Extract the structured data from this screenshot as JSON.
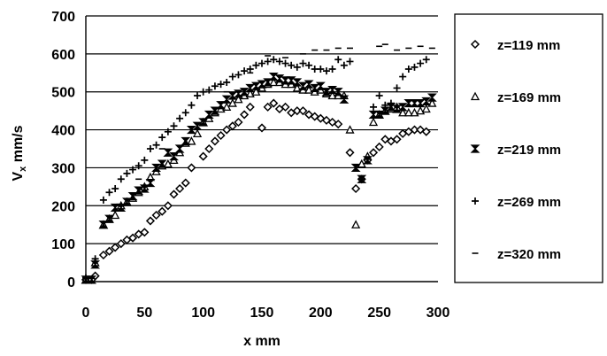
{
  "chart_data": {
    "type": "scatter",
    "title": "",
    "xlabel": "x mm",
    "ylabel_main": "V",
    "ylabel_sub": "x",
    "ylabel_rest": " mm/s",
    "xlim": [
      0,
      300
    ],
    "ylim": [
      0,
      700
    ],
    "xticks": [
      "0",
      "50",
      "100",
      "150",
      "200",
      "250",
      "300"
    ],
    "yticks": [
      "0",
      "100",
      "200",
      "300",
      "400",
      "500",
      "600",
      "700"
    ],
    "grid": "horizontal",
    "legend_position": "right",
    "series": [
      {
        "name": "z=119 mm",
        "marker": "diamond",
        "x": [
          0,
          5,
          8,
          15,
          20,
          25,
          30,
          35,
          40,
          45,
          50,
          55,
          60,
          65,
          70,
          75,
          80,
          85,
          90,
          100,
          105,
          110,
          115,
          120,
          125,
          130,
          135,
          140,
          150,
          155,
          160,
          165,
          170,
          175,
          180,
          185,
          190,
          195,
          200,
          205,
          210,
          215,
          225,
          230,
          235,
          240,
          245,
          250,
          255,
          260,
          265,
          270,
          275,
          280,
          285,
          290
        ],
        "y": [
          5,
          5,
          15,
          70,
          80,
          90,
          100,
          110,
          115,
          125,
          130,
          160,
          175,
          185,
          200,
          230,
          245,
          260,
          300,
          330,
          350,
          370,
          385,
          400,
          410,
          420,
          440,
          460,
          405,
          460,
          470,
          455,
          460,
          445,
          450,
          450,
          440,
          435,
          430,
          425,
          420,
          415,
          340,
          245,
          270,
          320,
          340,
          355,
          375,
          370,
          375,
          390,
          395,
          400,
          400,
          395
        ]
      },
      {
        "name": "z=169 mm",
        "marker": "triangle",
        "x": [
          0,
          8,
          15,
          20,
          25,
          30,
          35,
          40,
          45,
          50,
          55,
          60,
          65,
          70,
          75,
          80,
          85,
          90,
          95,
          100,
          105,
          110,
          115,
          120,
          125,
          130,
          135,
          140,
          145,
          150,
          155,
          160,
          165,
          170,
          175,
          180,
          185,
          190,
          195,
          200,
          205,
          210,
          215,
          220,
          225,
          230,
          235,
          240,
          245,
          250,
          255,
          260,
          265,
          270,
          275,
          280,
          285,
          290,
          295
        ],
        "y": [
          5,
          50,
          150,
          165,
          175,
          200,
          210,
          220,
          235,
          250,
          275,
          290,
          305,
          310,
          320,
          340,
          365,
          370,
          390,
          420,
          430,
          445,
          455,
          460,
          470,
          480,
          490,
          495,
          500,
          510,
          520,
          525,
          525,
          520,
          520,
          510,
          505,
          505,
          500,
          505,
          495,
          490,
          490,
          490,
          400,
          150,
          310,
          330,
          420,
          440,
          450,
          455,
          460,
          445,
          445,
          445,
          450,
          455,
          470
        ]
      },
      {
        "name": "z=219 mm",
        "marker": "hourglass",
        "x": [
          0,
          5,
          8,
          15,
          20,
          25,
          30,
          35,
          40,
          45,
          50,
          55,
          60,
          65,
          70,
          75,
          80,
          85,
          90,
          95,
          100,
          105,
          110,
          115,
          120,
          125,
          130,
          135,
          140,
          145,
          150,
          155,
          160,
          165,
          170,
          175,
          180,
          185,
          190,
          195,
          200,
          205,
          210,
          215,
          220,
          230,
          235,
          240,
          245,
          250,
          255,
          260,
          265,
          270,
          275,
          280,
          285,
          290,
          295
        ],
        "y": [
          5,
          5,
          45,
          150,
          165,
          195,
          195,
          210,
          225,
          240,
          245,
          260,
          300,
          310,
          340,
          330,
          350,
          370,
          400,
          410,
          420,
          440,
          450,
          465,
          480,
          490,
          495,
          500,
          510,
          515,
          520,
          525,
          540,
          535,
          530,
          530,
          525,
          515,
          520,
          510,
          515,
          500,
          505,
          500,
          480,
          300,
          270,
          320,
          440,
          440,
          450,
          460,
          455,
          460,
          470,
          470,
          470,
          475,
          485
        ]
      },
      {
        "name": "z=269 mm",
        "marker": "plus",
        "x": [
          0,
          8,
          15,
          20,
          25,
          30,
          35,
          40,
          45,
          50,
          55,
          60,
          65,
          70,
          75,
          80,
          85,
          90,
          95,
          100,
          105,
          110,
          115,
          120,
          125,
          130,
          135,
          140,
          145,
          150,
          155,
          160,
          165,
          170,
          175,
          180,
          185,
          190,
          195,
          200,
          205,
          210,
          215,
          220,
          225,
          235,
          245,
          250,
          255,
          260,
          265,
          270,
          275,
          280,
          285,
          290
        ],
        "y": [
          10,
          60,
          215,
          235,
          245,
          270,
          285,
          295,
          305,
          320,
          350,
          360,
          380,
          395,
          410,
          430,
          445,
          465,
          490,
          500,
          505,
          515,
          520,
          525,
          540,
          545,
          555,
          560,
          570,
          575,
          580,
          585,
          580,
          575,
          570,
          565,
          575,
          570,
          560,
          560,
          555,
          560,
          585,
          570,
          580,
          270,
          460,
          490,
          465,
          470,
          510,
          540,
          560,
          565,
          575,
          585
        ]
      },
      {
        "name": "z=320 mm",
        "marker": "dash",
        "x": [
          45,
          65,
          120,
          140,
          155,
          170,
          185,
          195,
          205,
          215,
          225,
          250,
          255,
          265,
          275,
          285,
          295
        ],
        "y": [
          270,
          350,
          500,
          550,
          595,
          590,
          600,
          610,
          610,
          615,
          615,
          620,
          625,
          610,
          615,
          620,
          615
        ]
      }
    ]
  }
}
